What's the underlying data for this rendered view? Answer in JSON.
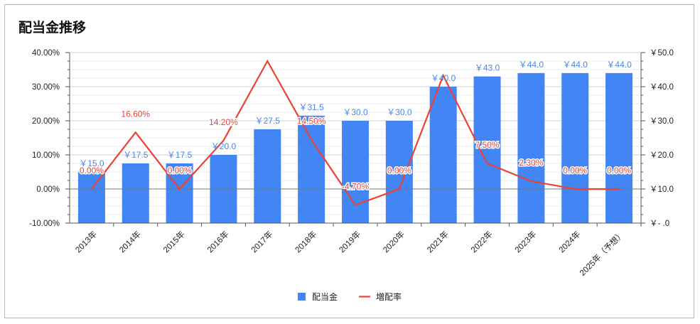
{
  "chart_data": {
    "type": "bar",
    "title": "配当金推移",
    "categories": [
      "2013年",
      "2014年",
      "2015年",
      "2016年",
      "2017年",
      "2018年",
      "2019年",
      "2020年",
      "2021年",
      "2022年",
      "2023年",
      "2024年",
      "2025年（予想）"
    ],
    "series": [
      {
        "name": "配当金",
        "type": "bar",
        "axis": "right",
        "color": "#4285f4",
        "values": [
          15.0,
          17.5,
          17.5,
          20.0,
          27.5,
          31.5,
          30.0,
          30.0,
          40.0,
          43.0,
          44.0,
          44.0,
          44.0
        ],
        "labels": [
          "￥15.0",
          "￥17.5",
          "￥17.5",
          "￥20.0",
          "￥27.5",
          "￥31.5",
          "￥30.0",
          "￥30.0",
          "￥40.0",
          "￥43.0",
          "￥44.0",
          "￥44.0",
          "￥44.0"
        ]
      },
      {
        "name": "増配率",
        "type": "line",
        "axis": "left",
        "color": "#ea4335",
        "values": [
          0.0,
          16.6,
          0.0,
          14.2,
          37.5,
          14.5,
          -4.7,
          0.0,
          33.3,
          7.5,
          2.3,
          0.0,
          0.0
        ],
        "labels": [
          "0.00%",
          "16.60%",
          "0.00%",
          "14.20%",
          "",
          "14.50%",
          "-4.70%",
          "0.00%",
          "",
          "7.50%",
          "2.30%",
          "0.00%",
          "0.00%"
        ]
      }
    ],
    "y_left": {
      "min": -10,
      "max": 40,
      "ticks": [
        "-10.00%",
        "0.00%",
        "10.00%",
        "20.00%",
        "30.00%",
        "40.00%"
      ]
    },
    "y_right": {
      "min": 0,
      "max": 50,
      "ticks": [
        "￥-  .0",
        "￥10.0",
        "￥20.0",
        "￥30.0",
        "￥40.0",
        "￥50.0"
      ]
    },
    "legend": {
      "position": "bottom",
      "items": [
        "配当金",
        "増配率"
      ]
    },
    "grid": true
  }
}
